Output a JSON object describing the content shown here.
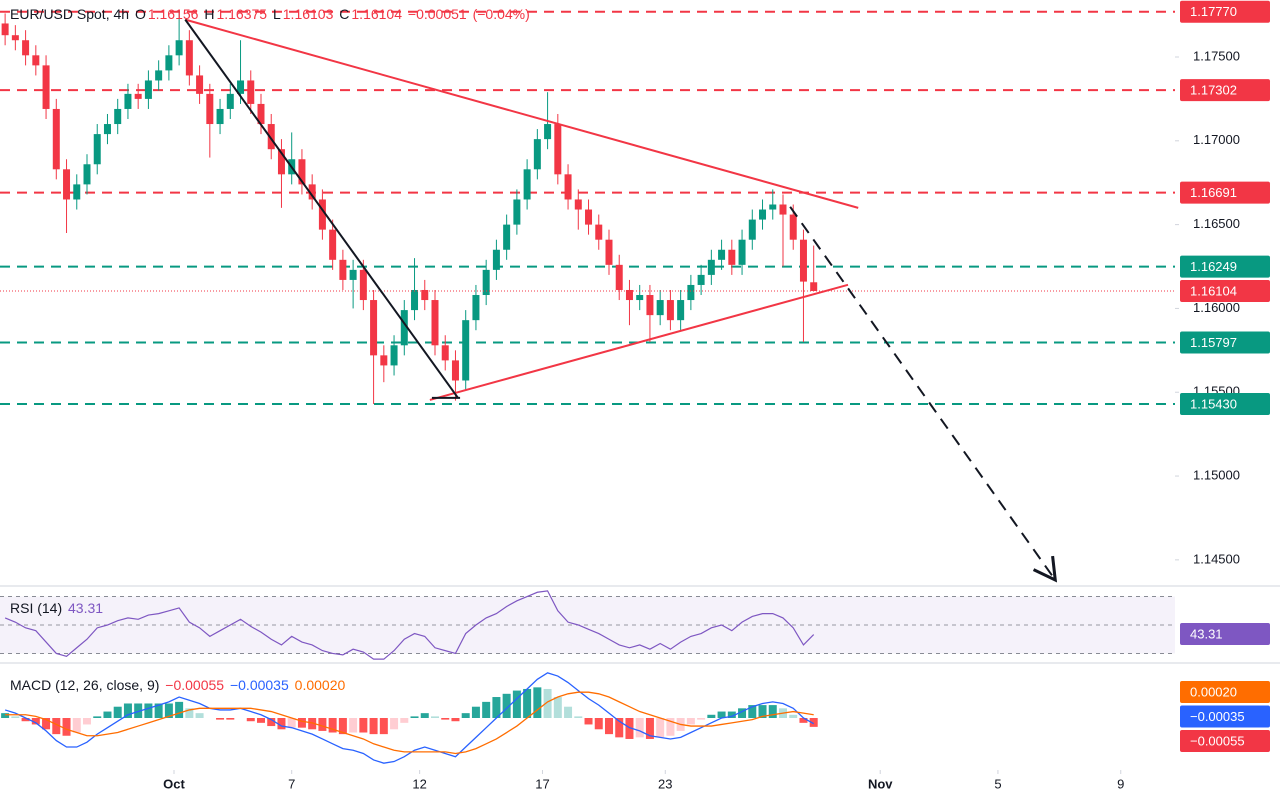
{
  "chart_data": [
    {
      "type": "candlestick",
      "title": "EUR/USD Spot, 4h",
      "ohlc_labels": [
        "O",
        "H",
        "L",
        "C"
      ],
      "change": {
        "value": -0.00051,
        "label": "−0.00051"
      },
      "change_pct": {
        "value": -0.04,
        "label": "(−0.04%)"
      },
      "up_color": "#089981",
      "down_color": "#f23645",
      "x": [
        1,
        3,
        5,
        7,
        9,
        11,
        13,
        15,
        17,
        19,
        21,
        23,
        25,
        27,
        29,
        31,
        33,
        35,
        37,
        39,
        41,
        43,
        45,
        47,
        49,
        51,
        53,
        55,
        57,
        59,
        61,
        63,
        65,
        67,
        69,
        71,
        73,
        75,
        77,
        79,
        81,
        83,
        85,
        87,
        89,
        91,
        93,
        95,
        97,
        99,
        101,
        103,
        105,
        107,
        109,
        111,
        113,
        115,
        117,
        119,
        121,
        123,
        125,
        127,
        129,
        131,
        133,
        135,
        137,
        139,
        141,
        143,
        145,
        147,
        149,
        151,
        153,
        155,
        157,
        159
      ],
      "open": [
        1.177,
        1.1763,
        1.176,
        1.1751,
        1.1745,
        1.1719,
        1.1683,
        1.1665,
        1.1674,
        1.1686,
        1.1704,
        1.171,
        1.1719,
        1.1728,
        1.1725,
        1.1736,
        1.1742,
        1.1751,
        1.176,
        1.1739,
        1.1728,
        1.171,
        1.1719,
        1.1728,
        1.1736,
        1.1722,
        1.171,
        1.1695,
        1.168,
        1.1689,
        1.1674,
        1.1665,
        1.1647,
        1.1629,
        1.1617,
        1.1623,
        1.1605,
        1.1572,
        1.1566,
        1.1578,
        1.1599,
        1.1611,
        1.1605,
        1.1578,
        1.1569,
        1.1557,
        1.1593,
        1.1608,
        1.1623,
        1.1635,
        1.165,
        1.1665,
        1.1683,
        1.1701,
        1.171,
        1.168,
        1.1665,
        1.1659,
        1.165,
        1.1641,
        1.1626,
        1.1611,
        1.1605,
        1.1608,
        1.1596,
        1.1605,
        1.1593,
        1.1605,
        1.1614,
        1.162,
        1.1629,
        1.1635,
        1.1626,
        1.1641,
        1.1653,
        1.1659,
        1.1662,
        1.1656,
        1.1641,
        1.16156
      ],
      "high": [
        1.1776,
        1.1769,
        1.1766,
        1.1757,
        1.1751,
        1.1725,
        1.1689,
        1.168,
        1.1692,
        1.171,
        1.1716,
        1.1725,
        1.1734,
        1.1734,
        1.1742,
        1.1748,
        1.1757,
        1.1778,
        1.1766,
        1.1745,
        1.1734,
        1.1725,
        1.1734,
        1.176,
        1.1742,
        1.1728,
        1.1716,
        1.1701,
        1.1705,
        1.1695,
        1.168,
        1.1671,
        1.1653,
        1.1635,
        1.1629,
        1.1629,
        1.1611,
        1.1578,
        1.1584,
        1.1605,
        1.163,
        1.1617,
        1.1611,
        1.1584,
        1.1575,
        1.1599,
        1.1614,
        1.1629,
        1.1641,
        1.1656,
        1.1671,
        1.1689,
        1.1707,
        1.1729,
        1.1716,
        1.1686,
        1.1671,
        1.1665,
        1.1656,
        1.1647,
        1.1632,
        1.1617,
        1.1614,
        1.1614,
        1.1611,
        1.1611,
        1.1611,
        1.162,
        1.1626,
        1.1635,
        1.1641,
        1.1641,
        1.1647,
        1.1659,
        1.1665,
        1.1671,
        1.1668,
        1.1662,
        1.1647,
        1.16375
      ],
      "low": [
        1.1757,
        1.1754,
        1.1745,
        1.1739,
        1.1713,
        1.1677,
        1.1645,
        1.1659,
        1.1668,
        1.168,
        1.1698,
        1.1704,
        1.1713,
        1.1719,
        1.1719,
        1.173,
        1.1736,
        1.1745,
        1.1733,
        1.1722,
        1.169,
        1.1704,
        1.1713,
        1.1722,
        1.1716,
        1.1704,
        1.1689,
        1.166,
        1.1674,
        1.1668,
        1.1659,
        1.1641,
        1.1623,
        1.1611,
        1.16,
        1.1599,
        1.1543,
        1.1556,
        1.156,
        1.1572,
        1.1593,
        1.1599,
        1.1572,
        1.1563,
        1.1545,
        1.1551,
        1.1587,
        1.1602,
        1.1617,
        1.1629,
        1.1644,
        1.1659,
        1.1677,
        1.1695,
        1.1674,
        1.1659,
        1.1647,
        1.1644,
        1.1635,
        1.162,
        1.1605,
        1.159,
        1.1599,
        1.158,
        1.159,
        1.1587,
        1.1587,
        1.1599,
        1.1608,
        1.1614,
        1.1623,
        1.162,
        1.162,
        1.1635,
        1.1647,
        1.1653,
        1.1625,
        1.1635,
        1.158,
        1.16103
      ],
      "close": [
        1.1763,
        1.176,
        1.1751,
        1.1745,
        1.1719,
        1.1683,
        1.1665,
        1.1674,
        1.1686,
        1.1704,
        1.171,
        1.1719,
        1.1728,
        1.1725,
        1.1736,
        1.1742,
        1.1751,
        1.176,
        1.1739,
        1.1728,
        1.171,
        1.1719,
        1.1728,
        1.1736,
        1.1722,
        1.171,
        1.1695,
        1.168,
        1.1689,
        1.1674,
        1.1665,
        1.1647,
        1.1629,
        1.1617,
        1.1623,
        1.1605,
        1.1572,
        1.1566,
        1.1578,
        1.1599,
        1.1611,
        1.1605,
        1.1578,
        1.1569,
        1.1557,
        1.1593,
        1.1608,
        1.1623,
        1.1635,
        1.165,
        1.1665,
        1.1683,
        1.1701,
        1.171,
        1.168,
        1.1665,
        1.1659,
        1.165,
        1.1641,
        1.1626,
        1.1611,
        1.1605,
        1.1608,
        1.1596,
        1.1605,
        1.1593,
        1.1605,
        1.1614,
        1.162,
        1.1629,
        1.1635,
        1.1626,
        1.1641,
        1.1653,
        1.1659,
        1.1662,
        1.1656,
        1.1641,
        1.1616,
        1.16104
      ],
      "xlim": [
        0,
        229.6
      ],
      "xticks": [
        {
          "value": 34,
          "label": "Oct"
        },
        {
          "value": 57,
          "label": "7"
        },
        {
          "value": 82,
          "label": "12"
        },
        {
          "value": 106,
          "label": "17"
        },
        {
          "value": 130,
          "label": "23"
        },
        {
          "value": 172,
          "label": "Nov"
        },
        {
          "value": 195,
          "label": "5"
        },
        {
          "value": 219,
          "label": "9"
        }
      ],
      "ylim": [
        1.1435,
        1.1784
      ],
      "yticks": [
        {
          "value": 1.145,
          "label": "1.14500"
        },
        {
          "value": 1.15,
          "label": "1.15000"
        },
        {
          "value": 1.155,
          "label": "1.15500"
        },
        {
          "value": 1.16,
          "label": "1.16000"
        },
        {
          "value": 1.165,
          "label": "1.16500"
        },
        {
          "value": 1.17,
          "label": "1.17000"
        },
        {
          "value": 1.175,
          "label": "1.17500"
        }
      ],
      "levels": [
        {
          "value": 1.1777,
          "label": "1.17770",
          "color": "#f23645"
        },
        {
          "value": 1.17302,
          "label": "1.17302",
          "color": "#f23645"
        },
        {
          "value": 1.16691,
          "label": "1.16691",
          "color": "#f23645"
        },
        {
          "value": 1.16249,
          "label": "1.16249",
          "color": "#089981"
        },
        {
          "value": 1.15797,
          "label": "1.15797",
          "color": "#089981"
        },
        {
          "value": 1.1543,
          "label": "1.15430",
          "color": "#089981"
        }
      ],
      "trendlines": [
        {
          "color": "#f23645",
          "dashed": false,
          "points": [
            [
              36.2,
              1.17723
            ],
            [
              167.7,
              1.166
            ]
          ]
        },
        {
          "color": "#f23645",
          "dashed": false,
          "points": [
            [
              84.0,
              1.15454
            ],
            [
              165.7,
              1.16141
            ]
          ]
        },
        {
          "color": "#131722",
          "dashed": false,
          "points": [
            [
              36.2,
              1.17723
            ],
            [
              89.5,
              1.15466
            ]
          ]
        },
        {
          "color": "#131722",
          "dashed": false,
          "points": [
            [
              84.4,
              1.15466
            ],
            [
              89.9,
              1.15466
            ]
          ]
        },
        {
          "color": "#131722",
          "dashed": true,
          "points": [
            [
              154.4,
              1.16606
            ],
            [
              206.2,
              1.1438
            ]
          ]
        }
      ]
    },
    {
      "type": "rsi",
      "title": "RSI (14)",
      "color": "#7e57c2",
      "values": [
        55,
        52,
        48,
        46,
        38,
        30,
        28,
        34,
        40,
        48,
        50,
        53,
        55,
        54,
        57,
        58,
        60,
        62,
        52,
        48,
        42,
        46,
        50,
        54,
        49,
        45,
        40,
        36,
        42,
        38,
        36,
        32,
        30,
        29,
        33,
        31,
        26,
        26,
        32,
        40,
        44,
        42,
        34,
        32,
        30,
        44,
        50,
        55,
        58,
        63,
        67,
        70,
        73,
        74,
        60,
        52,
        50,
        47,
        44,
        40,
        36,
        34,
        36,
        33,
        37,
        33,
        38,
        42,
        44,
        48,
        50,
        46,
        52,
        56,
        58,
        58,
        55,
        48,
        36,
        43.31
      ],
      "ylim": [
        24,
        76
      ],
      "levels": [
        30,
        50,
        70
      ]
    },
    {
      "type": "macd",
      "title": "MACD (12, 26, close, 9)",
      "series": [
        {
          "kind": "histogram",
          "color": "#f23645",
          "last": {
            "value": -0.00055,
            "label": "−0.00055"
          },
          "values": [
            0.0003,
            0.0001,
            -0.0002,
            -0.0004,
            -0.0007,
            -0.001,
            -0.0011,
            -0.0009,
            -0.0004,
            0.0001,
            0.0004,
            0.0007,
            0.0009,
            0.0009,
            0.0009,
            0.0009,
            0.0009,
            0.001,
            0.0006,
            0.0003,
            0,
            -0.0001,
            -0.0001,
            0,
            -0.0002,
            -0.0003,
            -0.0005,
            -0.0007,
            -0.0006,
            -0.0006,
            -0.0007,
            -0.0008,
            -0.0009,
            -0.001,
            -0.0009,
            -0.0009,
            -0.001,
            -0.001,
            -0.0007,
            -0.0003,
            0.0001,
            0.0003,
            0.0001,
            -0.0001,
            -0.0002,
            0.0003,
            0.0007,
            0.001,
            0.0013,
            0.0015,
            0.0017,
            0.0018,
            0.0019,
            0.0018,
            0.0013,
            0.0007,
            0.0001,
            -0.0004,
            -0.0007,
            -0.001,
            -0.0012,
            -0.0013,
            -0.0012,
            -0.0013,
            -0.0012,
            -0.0011,
            -0.0008,
            -0.0004,
            -0.0001,
            0.0002,
            0.0004,
            0.0004,
            0.0006,
            0.0008,
            0.0008,
            0.0008,
            0.0006,
            0.0002,
            -0.0003,
            -0.00055
          ]
        },
        {
          "kind": "line",
          "color": "#2962ff",
          "last": {
            "value": -0.00035,
            "label": "−0.00035"
          },
          "values": [
            0.0005,
            0.0003,
            0,
            -0.0003,
            -0.0008,
            -0.0014,
            -0.0018,
            -0.0018,
            -0.0015,
            -0.001,
            -0.0006,
            -0.0002,
            0.0002,
            0.0004,
            0.0006,
            0.0008,
            0.001,
            0.0013,
            0.0011,
            0.0009,
            0.0006,
            0.0005,
            0.0005,
            0.0006,
            0.0004,
            0.0002,
            -0.0001,
            -0.0005,
            -0.0006,
            -0.0008,
            -0.001,
            -0.0013,
            -0.0016,
            -0.0019,
            -0.002,
            -0.0022,
            -0.0026,
            -0.0028,
            -0.0027,
            -0.0024,
            -0.002,
            -0.0018,
            -0.002,
            -0.0022,
            -0.0024,
            -0.0018,
            -0.0012,
            -0.0006,
            0,
            0.0006,
            0.0012,
            0.0018,
            0.0024,
            0.0028,
            0.0026,
            0.0022,
            0.0017,
            0.0012,
            0.0008,
            0.0003,
            -0.0002,
            -0.0006,
            -0.0008,
            -0.0011,
            -0.0012,
            -0.0013,
            -0.0012,
            -0.0009,
            -0.0006,
            -0.0003,
            0,
            0.0001,
            0.0004,
            0.0007,
            0.0009,
            0.001,
            0.0009,
            0.0006,
            0,
            -0.00035
          ]
        },
        {
          "kind": "line",
          "color": "#ff6d00",
          "last": {
            "value": 0.0002,
            "label": "0.00020"
          },
          "values": [
            0.0002,
            0.0002,
            0.0002,
            0.0001,
            -0.0001,
            -0.0004,
            -0.0007,
            -0.0009,
            -0.0011,
            -0.0011,
            -0.001,
            -0.0009,
            -0.0007,
            -0.0005,
            -0.0003,
            -0.0001,
            0.0001,
            0.0003,
            0.0005,
            0.0006,
            0.0006,
            0.0006,
            0.0006,
            0.0006,
            0.0006,
            0.0005,
            0.0004,
            0.0002,
            0,
            -0.0002,
            -0.0003,
            -0.0005,
            -0.0007,
            -0.0009,
            -0.0011,
            -0.0013,
            -0.0016,
            -0.0018,
            -0.002,
            -0.0021,
            -0.0021,
            -0.0021,
            -0.0021,
            -0.0021,
            -0.0022,
            -0.0021,
            -0.0019,
            -0.0016,
            -0.0013,
            -0.0009,
            -0.0005,
            0,
            0.0005,
            0.001,
            0.0013,
            0.0015,
            0.0016,
            0.0016,
            0.0015,
            0.0013,
            0.001,
            0.0007,
            0.0004,
            0.0002,
            0,
            -0.0002,
            -0.0004,
            -0.0005,
            -0.0005,
            -0.0005,
            -0.0004,
            -0.0003,
            -0.0002,
            -0.0001,
            0.0001,
            0.0002,
            0.0003,
            0.0004,
            0.0003,
            0.0002
          ]
        }
      ],
      "ylim": [
        -0.0031,
        0.0031
      ]
    }
  ]
}
